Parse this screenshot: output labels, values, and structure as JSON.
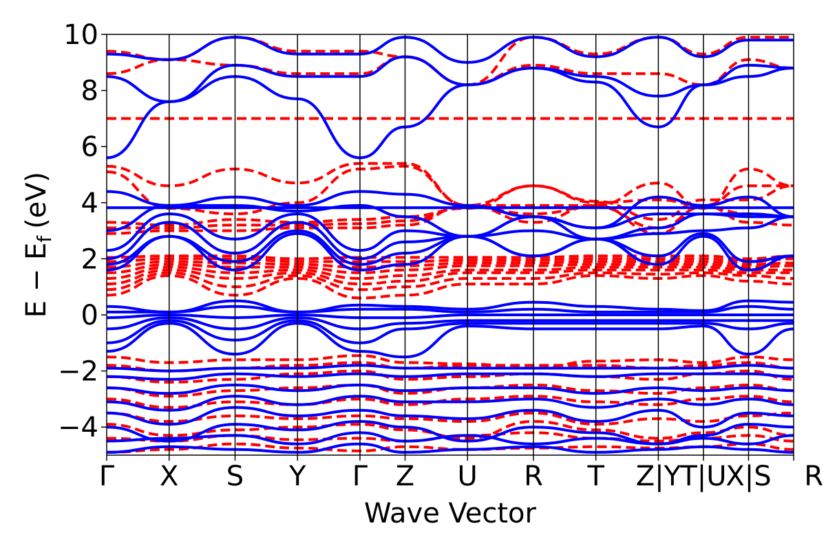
{
  "chart_data": {
    "type": "line",
    "title": "",
    "xlabel": "Wave Vector",
    "ylabel": "E − E",
    "ylabel_sub": "f",
    "ylabel_unit": "(eV)",
    "ylim": [
      -5,
      10
    ],
    "yticks": [
      -4,
      -2,
      0,
      2,
      4,
      6,
      8,
      10
    ],
    "grid": false,
    "legend": "none",
    "kpath": [
      {
        "label": "Γ",
        "x": 0.0
      },
      {
        "label": "X",
        "x": 0.9
      },
      {
        "label": "S",
        "x": 1.85
      },
      {
        "label": "Y",
        "x": 2.75
      },
      {
        "label": "Γ",
        "x": 3.65
      },
      {
        "label": "Z",
        "x": 4.3
      },
      {
        "label": "U",
        "x": 5.2
      },
      {
        "label": "R",
        "x": 6.15
      },
      {
        "label": "T",
        "x": 7.05
      },
      {
        "label": "Z|Y",
        "x": 7.95
      },
      {
        "label": "T|U",
        "x": 8.6
      },
      {
        "label": "X|S",
        "x": 9.25
      },
      {
        "label": "R",
        "x": 9.9
      }
    ],
    "series": [
      {
        "style": "dashed",
        "color": "#ff0000",
        "bands": [
          [
            -4.9,
            -4.8,
            -4.6,
            -4.75,
            -4.85,
            -4.7,
            -4.8,
            -4.75,
            -4.7,
            -4.75,
            -4.7,
            -4.6,
            -4.8
          ],
          [
            -4.4,
            -4.5,
            -4.3,
            -4.45,
            -4.4,
            -4.5,
            -4.3,
            -4.2,
            -4.4,
            -4.5,
            -4.4,
            -4.3,
            -4.5
          ],
          [
            -3.9,
            -4.3,
            -4.1,
            -4.0,
            -3.9,
            -4.1,
            -4.4,
            -3.8,
            -4.1,
            -4.4,
            -4.2,
            -4.0,
            -4.3
          ],
          [
            -3.5,
            -3.8,
            -3.6,
            -3.7,
            -3.6,
            -3.7,
            -3.8,
            -3.5,
            -3.9,
            -3.7,
            -3.8,
            -3.6,
            -3.5
          ],
          [
            -3.0,
            -3.3,
            -3.1,
            -3.2,
            -3.0,
            -3.2,
            -3.0,
            -2.9,
            -3.1,
            -3.2,
            -3.0,
            -2.9,
            -3.1
          ],
          [
            -2.6,
            -2.9,
            -2.7,
            -2.6,
            -2.5,
            -2.8,
            -2.6,
            -2.5,
            -2.7,
            -2.8,
            -2.6,
            -2.5,
            -2.7
          ],
          [
            -2.2,
            -2.4,
            -2.3,
            -2.1,
            -2.0,
            -2.3,
            -2.2,
            -2.1,
            -2.2,
            -2.3,
            -2.1,
            -2.0,
            -2.3
          ],
          [
            -1.8,
            -2.0,
            -1.9,
            -1.8,
            -1.7,
            -1.9,
            -1.8,
            -1.8,
            -1.8,
            -1.9,
            -1.8,
            -1.7,
            -1.9
          ],
          [
            -1.5,
            -1.7,
            -1.6,
            -1.6,
            -1.45,
            -1.7,
            -1.75,
            -1.9,
            -1.65,
            -1.6,
            -1.7,
            -1.5,
            -1.6
          ],
          [
            0.7,
            1.4,
            0.7,
            1.3,
            0.6,
            0.7,
            1.1,
            1.1,
            1.4,
            1.3,
            1.4,
            1.2,
            1.1
          ],
          [
            0.9,
            1.5,
            1.0,
            1.4,
            0.9,
            1.0,
            1.3,
            1.3,
            1.5,
            1.45,
            1.5,
            1.4,
            1.3
          ],
          [
            1.1,
            1.6,
            1.3,
            1.5,
            1.1,
            1.2,
            1.5,
            1.5,
            1.6,
            1.6,
            1.6,
            1.5,
            1.5
          ],
          [
            1.3,
            1.7,
            1.5,
            1.6,
            1.3,
            1.4,
            1.6,
            1.6,
            1.7,
            1.7,
            1.7,
            1.6,
            1.6
          ],
          [
            1.5,
            1.8,
            1.7,
            1.7,
            1.5,
            1.6,
            1.75,
            1.75,
            1.8,
            1.8,
            1.8,
            1.7,
            1.75
          ],
          [
            1.7,
            1.9,
            1.85,
            1.8,
            1.7,
            1.75,
            1.85,
            1.85,
            1.9,
            1.9,
            1.9,
            1.8,
            1.85
          ],
          [
            1.9,
            2.0,
            2.0,
            1.9,
            1.9,
            1.9,
            1.95,
            1.95,
            2.0,
            2.0,
            2.0,
            1.9,
            2.0
          ],
          [
            2.05,
            2.1,
            2.1,
            2.0,
            2.05,
            2.05,
            2.05,
            2.05,
            2.1,
            2.1,
            2.1,
            2.0,
            2.1
          ],
          [
            2.9,
            3.0,
            3.0,
            3.1,
            3.1,
            3.2,
            3.9,
            3.3,
            3.9,
            2.9,
            3.9,
            3.3,
            3.2
          ],
          [
            3.1,
            3.1,
            3.2,
            3.2,
            3.25,
            3.35,
            3.85,
            3.6,
            3.85,
            3.1,
            3.85,
            3.6,
            3.5
          ],
          [
            3.3,
            3.2,
            3.4,
            3.3,
            3.4,
            3.5,
            3.8,
            4.6,
            4.05,
            3.4,
            4.1,
            4.1,
            4.6
          ],
          [
            5.1,
            3.8,
            3.6,
            4.0,
            5.2,
            5.3,
            3.9,
            4.6,
            4.0,
            4.1,
            3.9,
            4.6,
            4.6
          ],
          [
            5.3,
            4.6,
            5.2,
            4.7,
            5.4,
            5.4,
            3.9,
            3.9,
            3.9,
            4.7,
            3.8,
            5.2,
            4.6
          ],
          [
            7.0,
            7.0,
            7.0,
            7.0,
            7.0,
            7.0,
            7.0,
            7.0,
            7.0,
            7.0,
            7.0,
            7.0,
            7.0
          ],
          [
            8.6,
            9.1,
            8.9,
            8.6,
            8.6,
            9.2,
            8.2,
            8.9,
            8.6,
            8.6,
            8.2,
            9.1,
            8.8
          ],
          [
            9.4,
            9.1,
            9.9,
            9.4,
            9.4,
            9.2,
            8.2,
            9.9,
            9.3,
            9.9,
            9.3,
            9.9,
            9.9
          ]
        ]
      },
      {
        "style": "solid",
        "color": "#0000ff",
        "bands": [
          [
            -4.9,
            -4.7,
            -4.8,
            -4.9,
            -4.6,
            -4.9,
            -4.8,
            -4.7,
            -4.9,
            -4.8,
            -4.7,
            -4.8,
            -4.9
          ],
          [
            -4.5,
            -4.4,
            -4.3,
            -4.6,
            -4.2,
            -4.5,
            -4.3,
            -4.6,
            -4.4,
            -4.6,
            -4.4,
            -4.6,
            -4.3
          ],
          [
            -4.0,
            -4.5,
            -3.9,
            -4.1,
            -3.8,
            -4.0,
            -4.5,
            -4.0,
            -4.2,
            -4.6,
            -4.3,
            -3.9,
            -4.0
          ],
          [
            -3.5,
            -3.9,
            -3.3,
            -3.6,
            -3.4,
            -3.6,
            -3.7,
            -3.4,
            -3.8,
            -3.4,
            -4.0,
            -3.5,
            -3.6
          ],
          [
            -3.1,
            -3.4,
            -2.9,
            -3.2,
            -2.9,
            -3.1,
            -3.1,
            -3.0,
            -3.3,
            -3.0,
            -3.2,
            -3.0,
            -3.2
          ],
          [
            -2.6,
            -2.8,
            -2.5,
            -2.7,
            -2.5,
            -2.7,
            -2.6,
            -2.6,
            -2.8,
            -2.6,
            -2.7,
            -2.6,
            -2.7
          ],
          [
            -2.2,
            -2.3,
            -2.1,
            -2.2,
            -2.1,
            -2.2,
            -2.1,
            -2.1,
            -2.2,
            -2.1,
            -2.1,
            -2.1,
            -2.2
          ],
          [
            -1.9,
            -2.0,
            -1.9,
            -1.9,
            -1.8,
            -1.9,
            -1.9,
            -1.9,
            -1.9,
            -1.9,
            -1.9,
            -1.8,
            -1.9
          ],
          [
            -1.3,
            -0.3,
            -1.4,
            -0.3,
            -1.3,
            -1.5,
            -0.4,
            -0.5,
            -0.5,
            -0.5,
            -0.4,
            -1.4,
            -0.5
          ],
          [
            -1.0,
            -0.2,
            -0.9,
            -0.2,
            -1.0,
            -0.5,
            -0.3,
            -0.3,
            -0.3,
            -0.3,
            -0.3,
            -0.5,
            -0.3
          ],
          [
            -0.5,
            -0.1,
            -0.5,
            -0.1,
            -0.5,
            -0.3,
            -0.2,
            -0.2,
            -0.2,
            -0.2,
            -0.2,
            -0.2,
            -0.2
          ],
          [
            -0.1,
            0.0,
            -0.1,
            0.0,
            -0.1,
            -0.1,
            0.0,
            0.0,
            0.0,
            0.0,
            0.0,
            0.0,
            0.0
          ],
          [
            0.1,
            0.1,
            0.3,
            0.1,
            0.2,
            0.2,
            0.1,
            0.2,
            0.1,
            0.1,
            0.1,
            0.3,
            0.2
          ],
          [
            0.3,
            0.1,
            0.5,
            0.1,
            0.35,
            0.3,
            0.2,
            0.45,
            0.3,
            0.2,
            0.15,
            0.5,
            0.45
          ],
          [
            1.6,
            2.8,
            1.6,
            2.9,
            1.6,
            1.8,
            2.8,
            2.1,
            2.7,
            1.8,
            2.8,
            1.6,
            2.1
          ],
          [
            1.8,
            2.8,
            1.9,
            3.0,
            1.8,
            2.2,
            2.8,
            2.1,
            2.7,
            2.1,
            2.9,
            1.9,
            2.1
          ],
          [
            2.0,
            3.3,
            2.2,
            3.3,
            2.0,
            2.6,
            2.8,
            3.0,
            2.7,
            2.9,
            3.0,
            3.1,
            3.5
          ],
          [
            2.3,
            3.6,
            2.7,
            3.6,
            2.3,
            3.0,
            2.8,
            3.5,
            2.7,
            3.1,
            3.6,
            3.5,
            3.5
          ],
          [
            3.0,
            3.9,
            3.9,
            3.7,
            3.9,
            3.5,
            2.8,
            3.5,
            3.1,
            3.6,
            3.6,
            3.6,
            3.5
          ],
          [
            3.82,
            3.82,
            3.82,
            3.82,
            3.82,
            3.82,
            3.82,
            3.82,
            3.82,
            3.82,
            3.82,
            3.82,
            3.82
          ],
          [
            4.4,
            3.9,
            4.2,
            3.9,
            4.4,
            4.3,
            3.9,
            3.5,
            3.1,
            4.2,
            3.9,
            4.2,
            3.5
          ],
          [
            5.6,
            7.6,
            8.5,
            7.7,
            5.6,
            6.7,
            8.2,
            8.8,
            8.3,
            6.7,
            8.2,
            8.5,
            8.8
          ],
          [
            8.5,
            7.6,
            8.9,
            8.5,
            8.5,
            9.2,
            8.2,
            8.8,
            8.5,
            7.8,
            8.2,
            8.9,
            8.8
          ],
          [
            9.3,
            9.1,
            9.9,
            9.3,
            9.3,
            9.9,
            9.0,
            9.9,
            9.2,
            9.9,
            9.2,
            9.8,
            9.8
          ]
        ]
      }
    ]
  }
}
